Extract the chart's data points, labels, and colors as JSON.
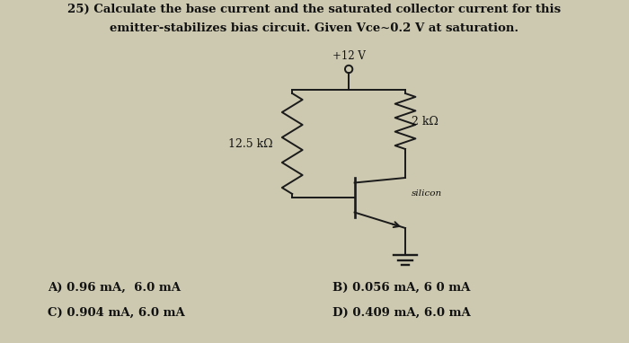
{
  "title_line1": "25) Calculate the base current and the saturated collector current for this",
  "title_line2": "emitter-stabilizes bias circuit. Given Vce~0.2 V at saturation.",
  "voltage_label": "+12 V",
  "r1_label": "12.5 kΩ",
  "r2_label": "2 kΩ",
  "transistor_label": "silicon",
  "answer_A": "A) 0.96 mA,  6.0 mA",
  "answer_B": "B) 0.056 mA, 6 0 mA",
  "answer_C": "C) 0.904 mA, 6.0 mA",
  "answer_D": "D) 0.409 mA, 6.0 mA",
  "bg_color": "#cdc9b0",
  "line_color": "#1a1a1a",
  "text_color": "#111111"
}
